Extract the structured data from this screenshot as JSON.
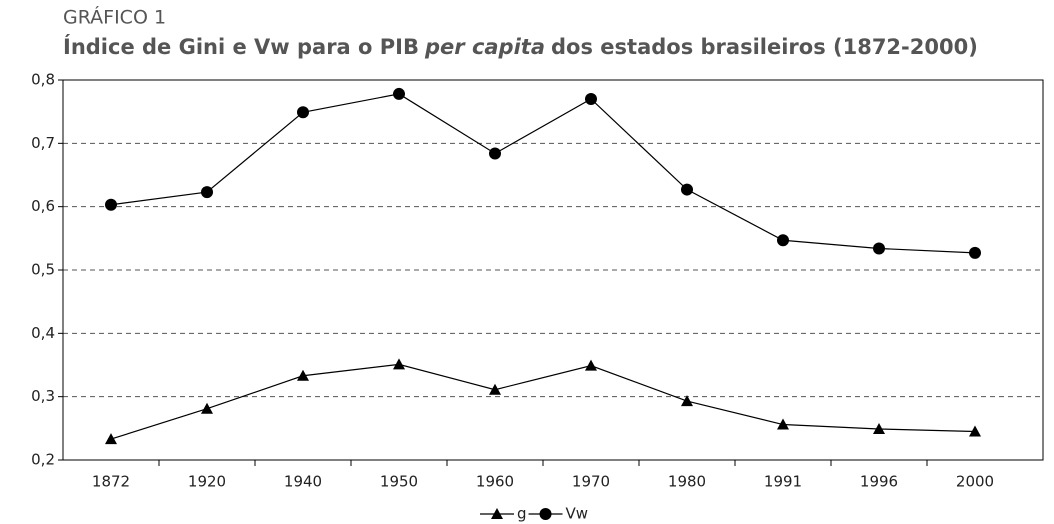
{
  "chart_data": {
    "type": "line",
    "label": "GRÁFICO 1",
    "title": [
      "Índice de Gini e Vw para o PIB",
      "per capita",
      "dos estados brasileiros (1872-2000)"
    ],
    "categories": [
      "1872",
      "1920",
      "1940",
      "1950",
      "1960",
      "1970",
      "1980",
      "1991",
      "1996",
      "2000"
    ],
    "series": [
      {
        "name": "g",
        "color": "#000000",
        "marker": "triangle",
        "values": [
          0.233,
          0.281,
          0.333,
          0.351,
          0.311,
          0.349,
          0.293,
          0.256,
          0.249,
          0.245
        ]
      },
      {
        "name": "Vw",
        "color": "#000000",
        "marker": "circle",
        "values": [
          0.603,
          0.623,
          0.749,
          0.778,
          0.684,
          0.77,
          0.627,
          0.547,
          0.534,
          0.527
        ]
      }
    ],
    "ylim": [
      0.2,
      0.8
    ],
    "yticks": [
      {
        "value": 0.2,
        "label": "0,2"
      },
      {
        "value": 0.3,
        "label": "0,3"
      },
      {
        "value": 0.4,
        "label": "0,4"
      },
      {
        "value": 0.5,
        "label": "0,5"
      },
      {
        "value": 0.6,
        "label": "0,6"
      },
      {
        "value": 0.7,
        "label": "0,7"
      },
      {
        "value": 0.8,
        "label": "0,8"
      }
    ],
    "grid": true
  }
}
